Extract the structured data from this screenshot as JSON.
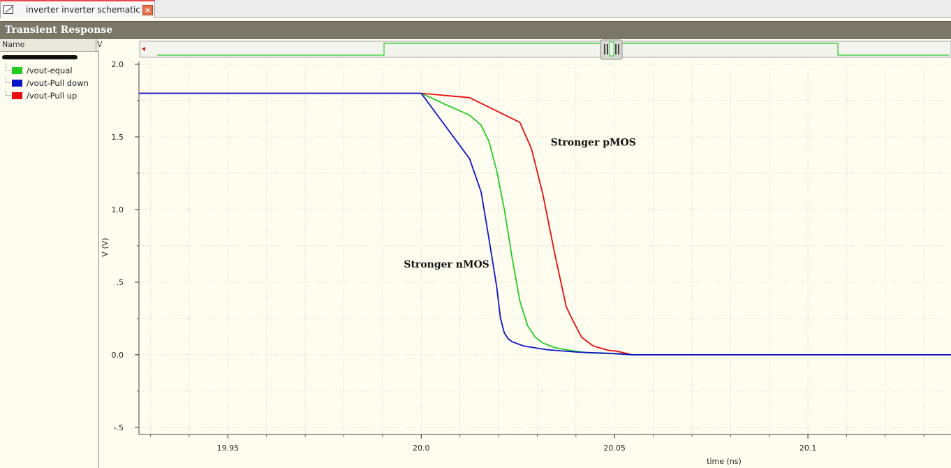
{
  "tab": {
    "label": "inverter inverter schematic",
    "close_glyph": "×",
    "icon": "schematic-doc-icon"
  },
  "panel": {
    "title": "Transient Response"
  },
  "legend_panel": {
    "name_header": "Name",
    "value_header": "V",
    "items": [
      {
        "label": "/vout-equal",
        "color": "#22cc22"
      },
      {
        "label": "/vout-Pull down",
        "color": "#0a14c8"
      },
      {
        "label": "/vout-Pull up",
        "color": "#e80c0c"
      }
    ]
  },
  "chart_data": {
    "type": "line",
    "xlabel": "time (ns)",
    "ylabel": "V (V)",
    "xlim": [
      19.927,
      20.137
    ],
    "ylim": [
      -0.52,
      2.0
    ],
    "x_ticks": [
      19.95,
      20.0,
      20.05,
      20.1
    ],
    "x_tick_labels": [
      "19.95",
      "20.0",
      "20.05",
      "20.1"
    ],
    "y_ticks": [
      2.0,
      1.5,
      1.0,
      0.5,
      0.0,
      -0.5
    ],
    "y_tick_labels": [
      "2.0",
      "1.5",
      "1.0",
      ".5",
      "0.0",
      "-.5"
    ],
    "grid": true,
    "series": [
      {
        "name": "/vout-equal",
        "color": "#22cc22",
        "x": [
          19.927,
          20.0,
          20.0065,
          20.0125,
          20.0155,
          20.0175,
          20.0195,
          20.0215,
          20.0235,
          20.0255,
          20.0275,
          20.0295,
          20.0315,
          20.0345,
          20.0385,
          20.0425,
          20.0465,
          20.0505,
          20.0545,
          20.137
        ],
        "y": [
          1.8,
          1.8,
          1.72,
          1.65,
          1.58,
          1.47,
          1.27,
          1.0,
          0.67,
          0.37,
          0.2,
          0.12,
          0.08,
          0.05,
          0.03,
          0.015,
          0.01,
          0.008,
          0.0,
          0.0
        ]
      },
      {
        "name": "/vout-Pull down",
        "color": "#0a14c8",
        "x": [
          19.927,
          20.0,
          20.0125,
          20.0155,
          20.0175,
          20.0195,
          20.0205,
          20.0215,
          20.0225,
          20.0235,
          20.0265,
          20.0325,
          20.0405,
          20.0485,
          20.0545,
          20.137
        ],
        "y": [
          1.8,
          1.8,
          1.35,
          1.12,
          0.8,
          0.47,
          0.25,
          0.15,
          0.11,
          0.09,
          0.06,
          0.035,
          0.018,
          0.01,
          0.0,
          0.0
        ]
      },
      {
        "name": "/vout-Pull up",
        "color": "#e80c0c",
        "x": [
          19.927,
          20.0,
          20.0125,
          20.0255,
          20.0285,
          20.0315,
          20.0345,
          20.0375,
          20.0395,
          20.0415,
          20.0445,
          20.0485,
          20.0505,
          20.0545,
          20.137
        ],
        "y": [
          1.8,
          1.8,
          1.77,
          1.6,
          1.42,
          1.1,
          0.7,
          0.33,
          0.22,
          0.12,
          0.06,
          0.03,
          0.025,
          0.0,
          0.0
        ]
      }
    ],
    "annotations": [
      {
        "text": "Stronger pMOS",
        "x": 20.0335,
        "y": 1.44
      },
      {
        "text": "Stronger nMOS",
        "x": 19.9955,
        "y": 0.6
      }
    ]
  }
}
